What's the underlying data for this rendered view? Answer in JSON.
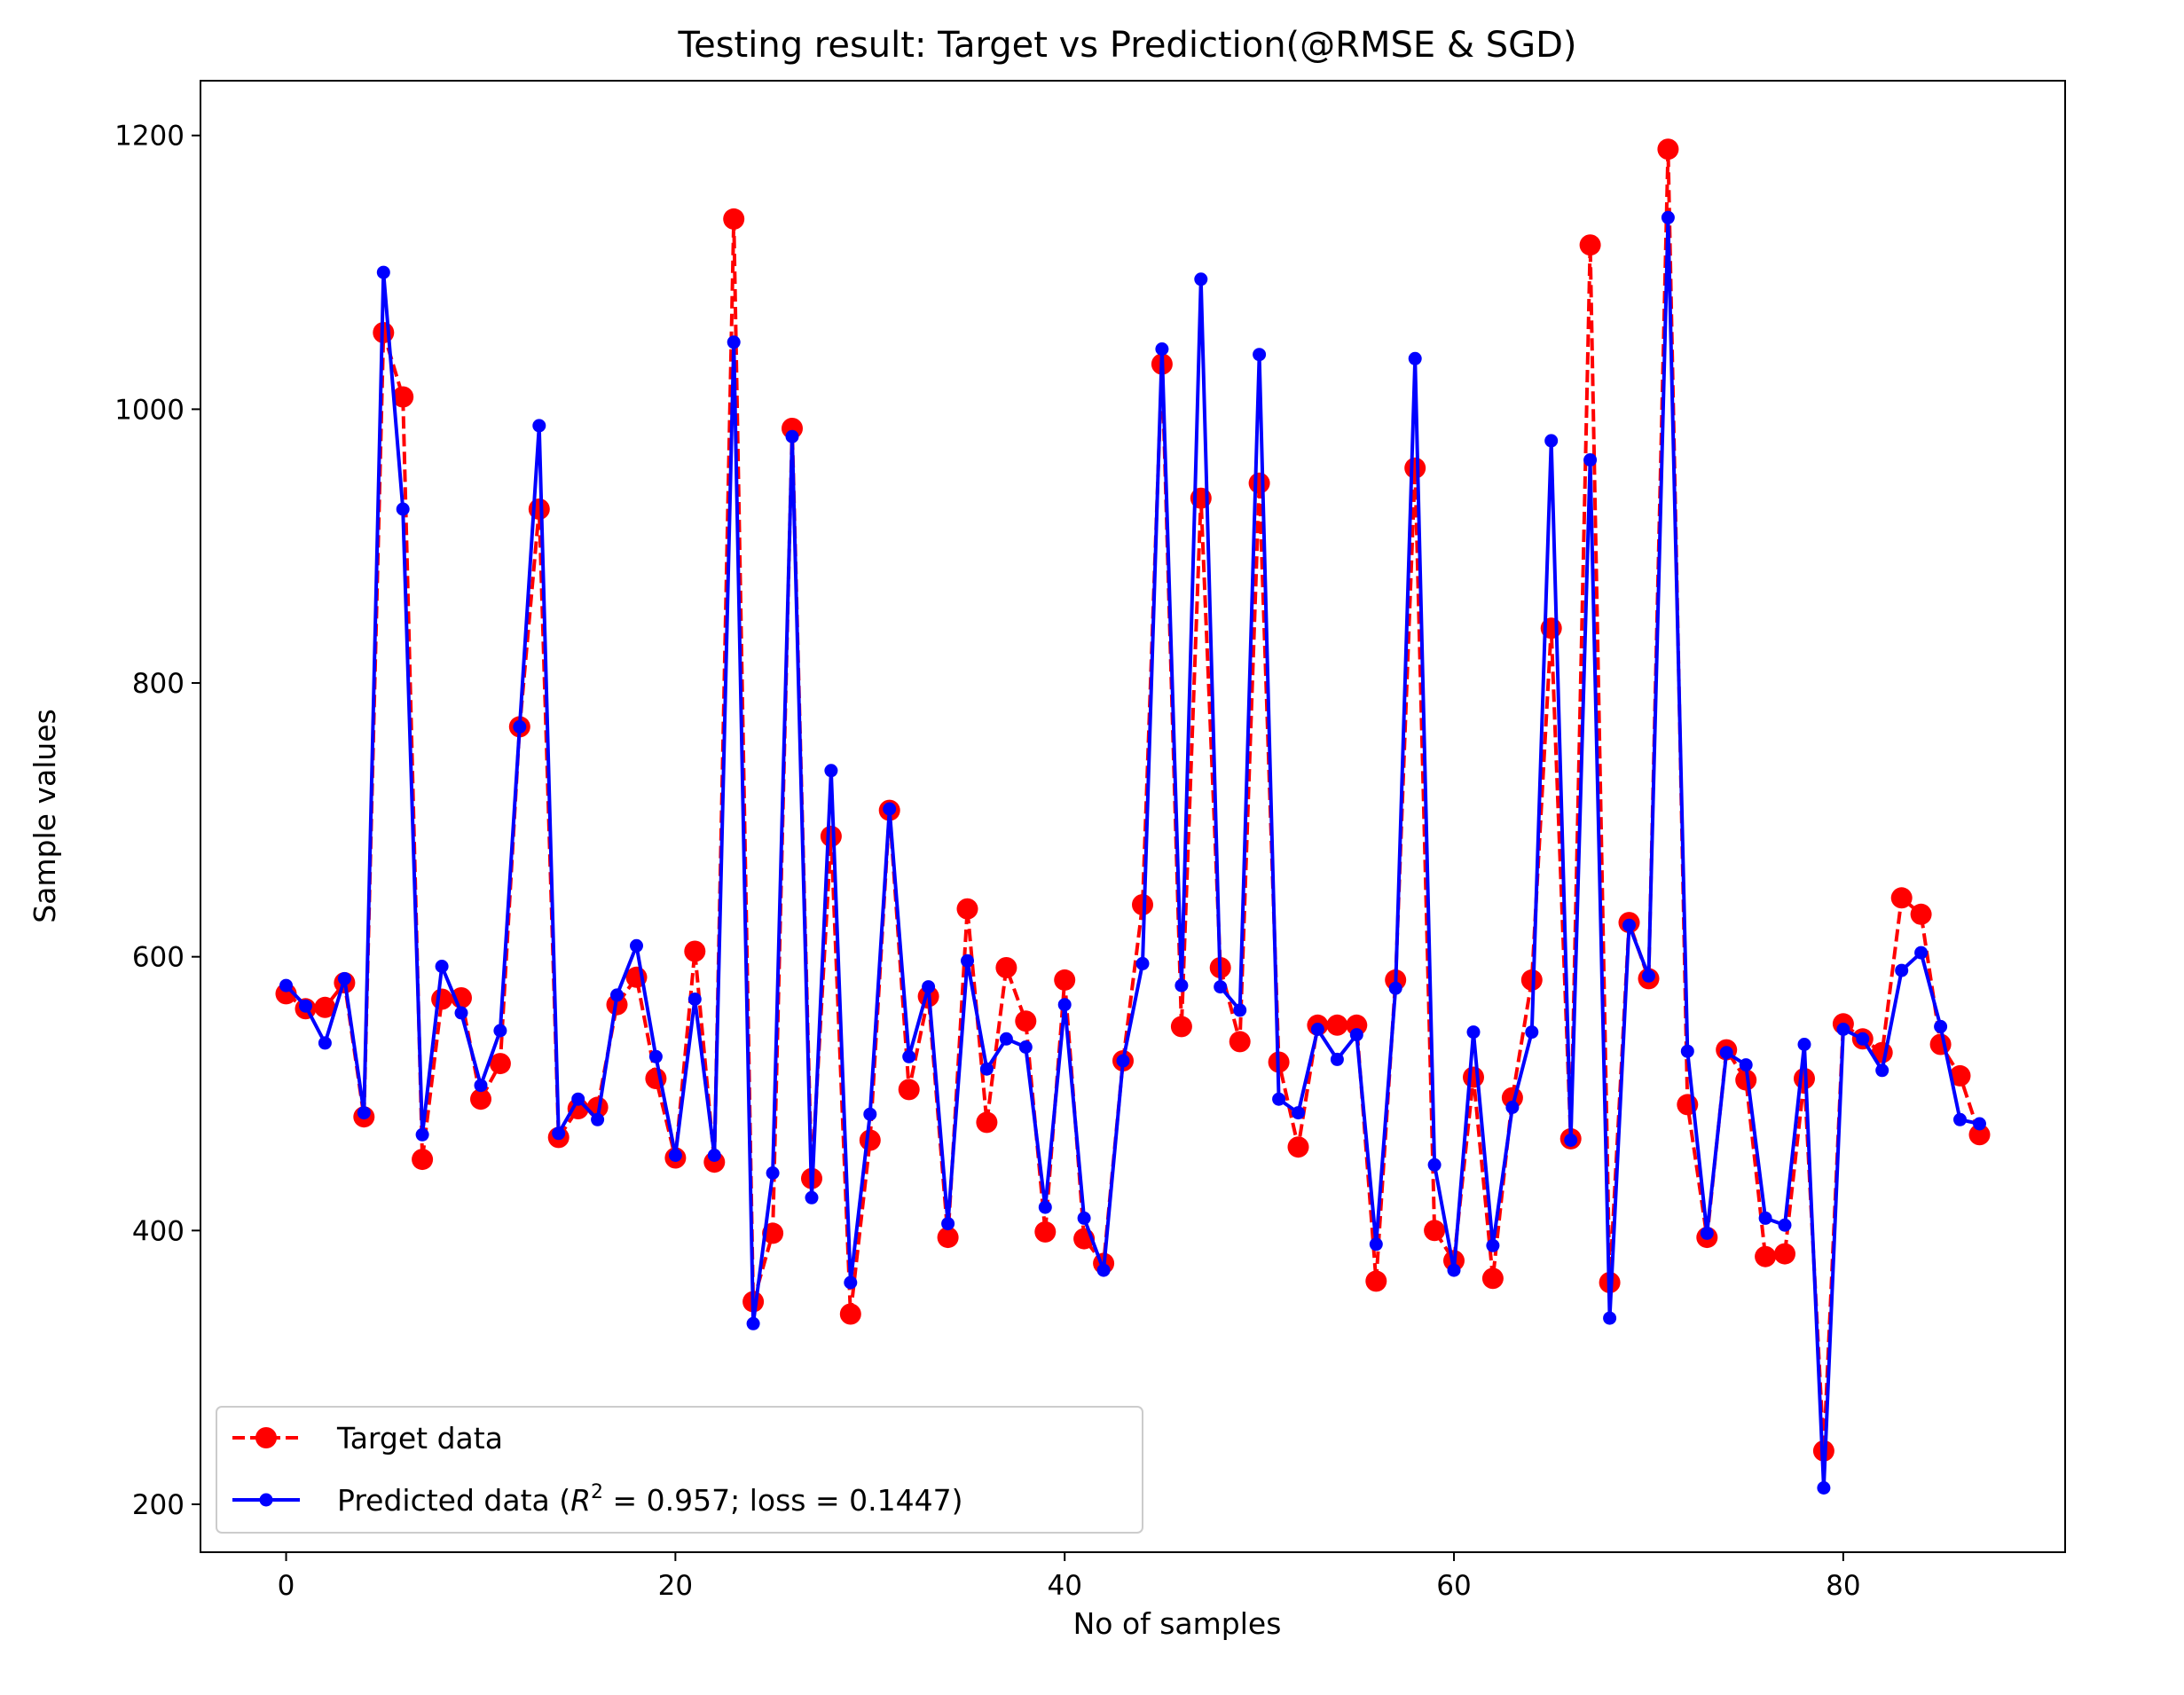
{
  "chart_data": {
    "type": "line",
    "title": "Testing result: Target vs Prediction(@RMSE & SGD)",
    "xlabel": "No of samples",
    "ylabel": "Sample values",
    "xlim": [
      -4.4,
      91.4
    ],
    "ylim": [
      165,
      1240
    ],
    "xticks": [
      0,
      20,
      40,
      60,
      80
    ],
    "yticks": [
      200,
      400,
      600,
      800,
      1000,
      1200
    ],
    "grid": false,
    "legend_position": "lower-left",
    "colors": {
      "target": "#ff0000",
      "predicted": "#0000ff"
    },
    "series": [
      {
        "name": "Target data",
        "style": "dashed-line-large-circle",
        "values": [
          573,
          562,
          563,
          581,
          483,
          1056,
          1009,
          452,
          569,
          570,
          496,
          522,
          768,
          927,
          468,
          489,
          490,
          565,
          585,
          511,
          453,
          604,
          450,
          1139,
          348,
          398,
          986,
          438,
          688,
          339,
          466,
          707,
          503,
          571,
          395,
          635,
          479,
          592,
          553,
          399,
          583,
          394,
          376,
          524,
          638,
          1033,
          549,
          935,
          592,
          538,
          946,
          523,
          461,
          550,
          550,
          550,
          363,
          583,
          957,
          400,
          378,
          512,
          365,
          497,
          583,
          840,
          467,
          1120,
          362,
          625,
          584,
          1190,
          492,
          395,
          532,
          510,
          381,
          383,
          511,
          239,
          551,
          540,
          530,
          643,
          631,
          536,
          513,
          470
        ]
      },
      {
        "name": "Predicted data",
        "legend_label_prefix": "Predicted data (",
        "legend_label_r": "R",
        "legend_label_sup": "2",
        "legend_label_suffix": " = 0.957; loss = 0.1447)",
        "style": "solid-line-small-dot",
        "values": [
          579,
          564,
          537,
          584,
          486,
          1100,
          927,
          470,
          593,
          559,
          506,
          546,
          768,
          988,
          471,
          496,
          481,
          572,
          608,
          527,
          455,
          569,
          455,
          1049,
          332,
          442,
          980,
          424,
          736,
          362,
          485,
          708,
          527,
          578,
          405,
          597,
          518,
          540,
          534,
          417,
          565,
          409,
          371,
          524,
          595,
          1044,
          579,
          1095,
          578,
          561,
          1040,
          496,
          486,
          547,
          525,
          543,
          390,
          577,
          1037,
          448,
          371,
          545,
          389,
          490,
          545,
          977,
          466,
          963,
          336,
          623,
          586,
          1140,
          531,
          398,
          530,
          521,
          409,
          404,
          536,
          212,
          547,
          540,
          517,
          590,
          603,
          549,
          481,
          478
        ]
      }
    ]
  }
}
